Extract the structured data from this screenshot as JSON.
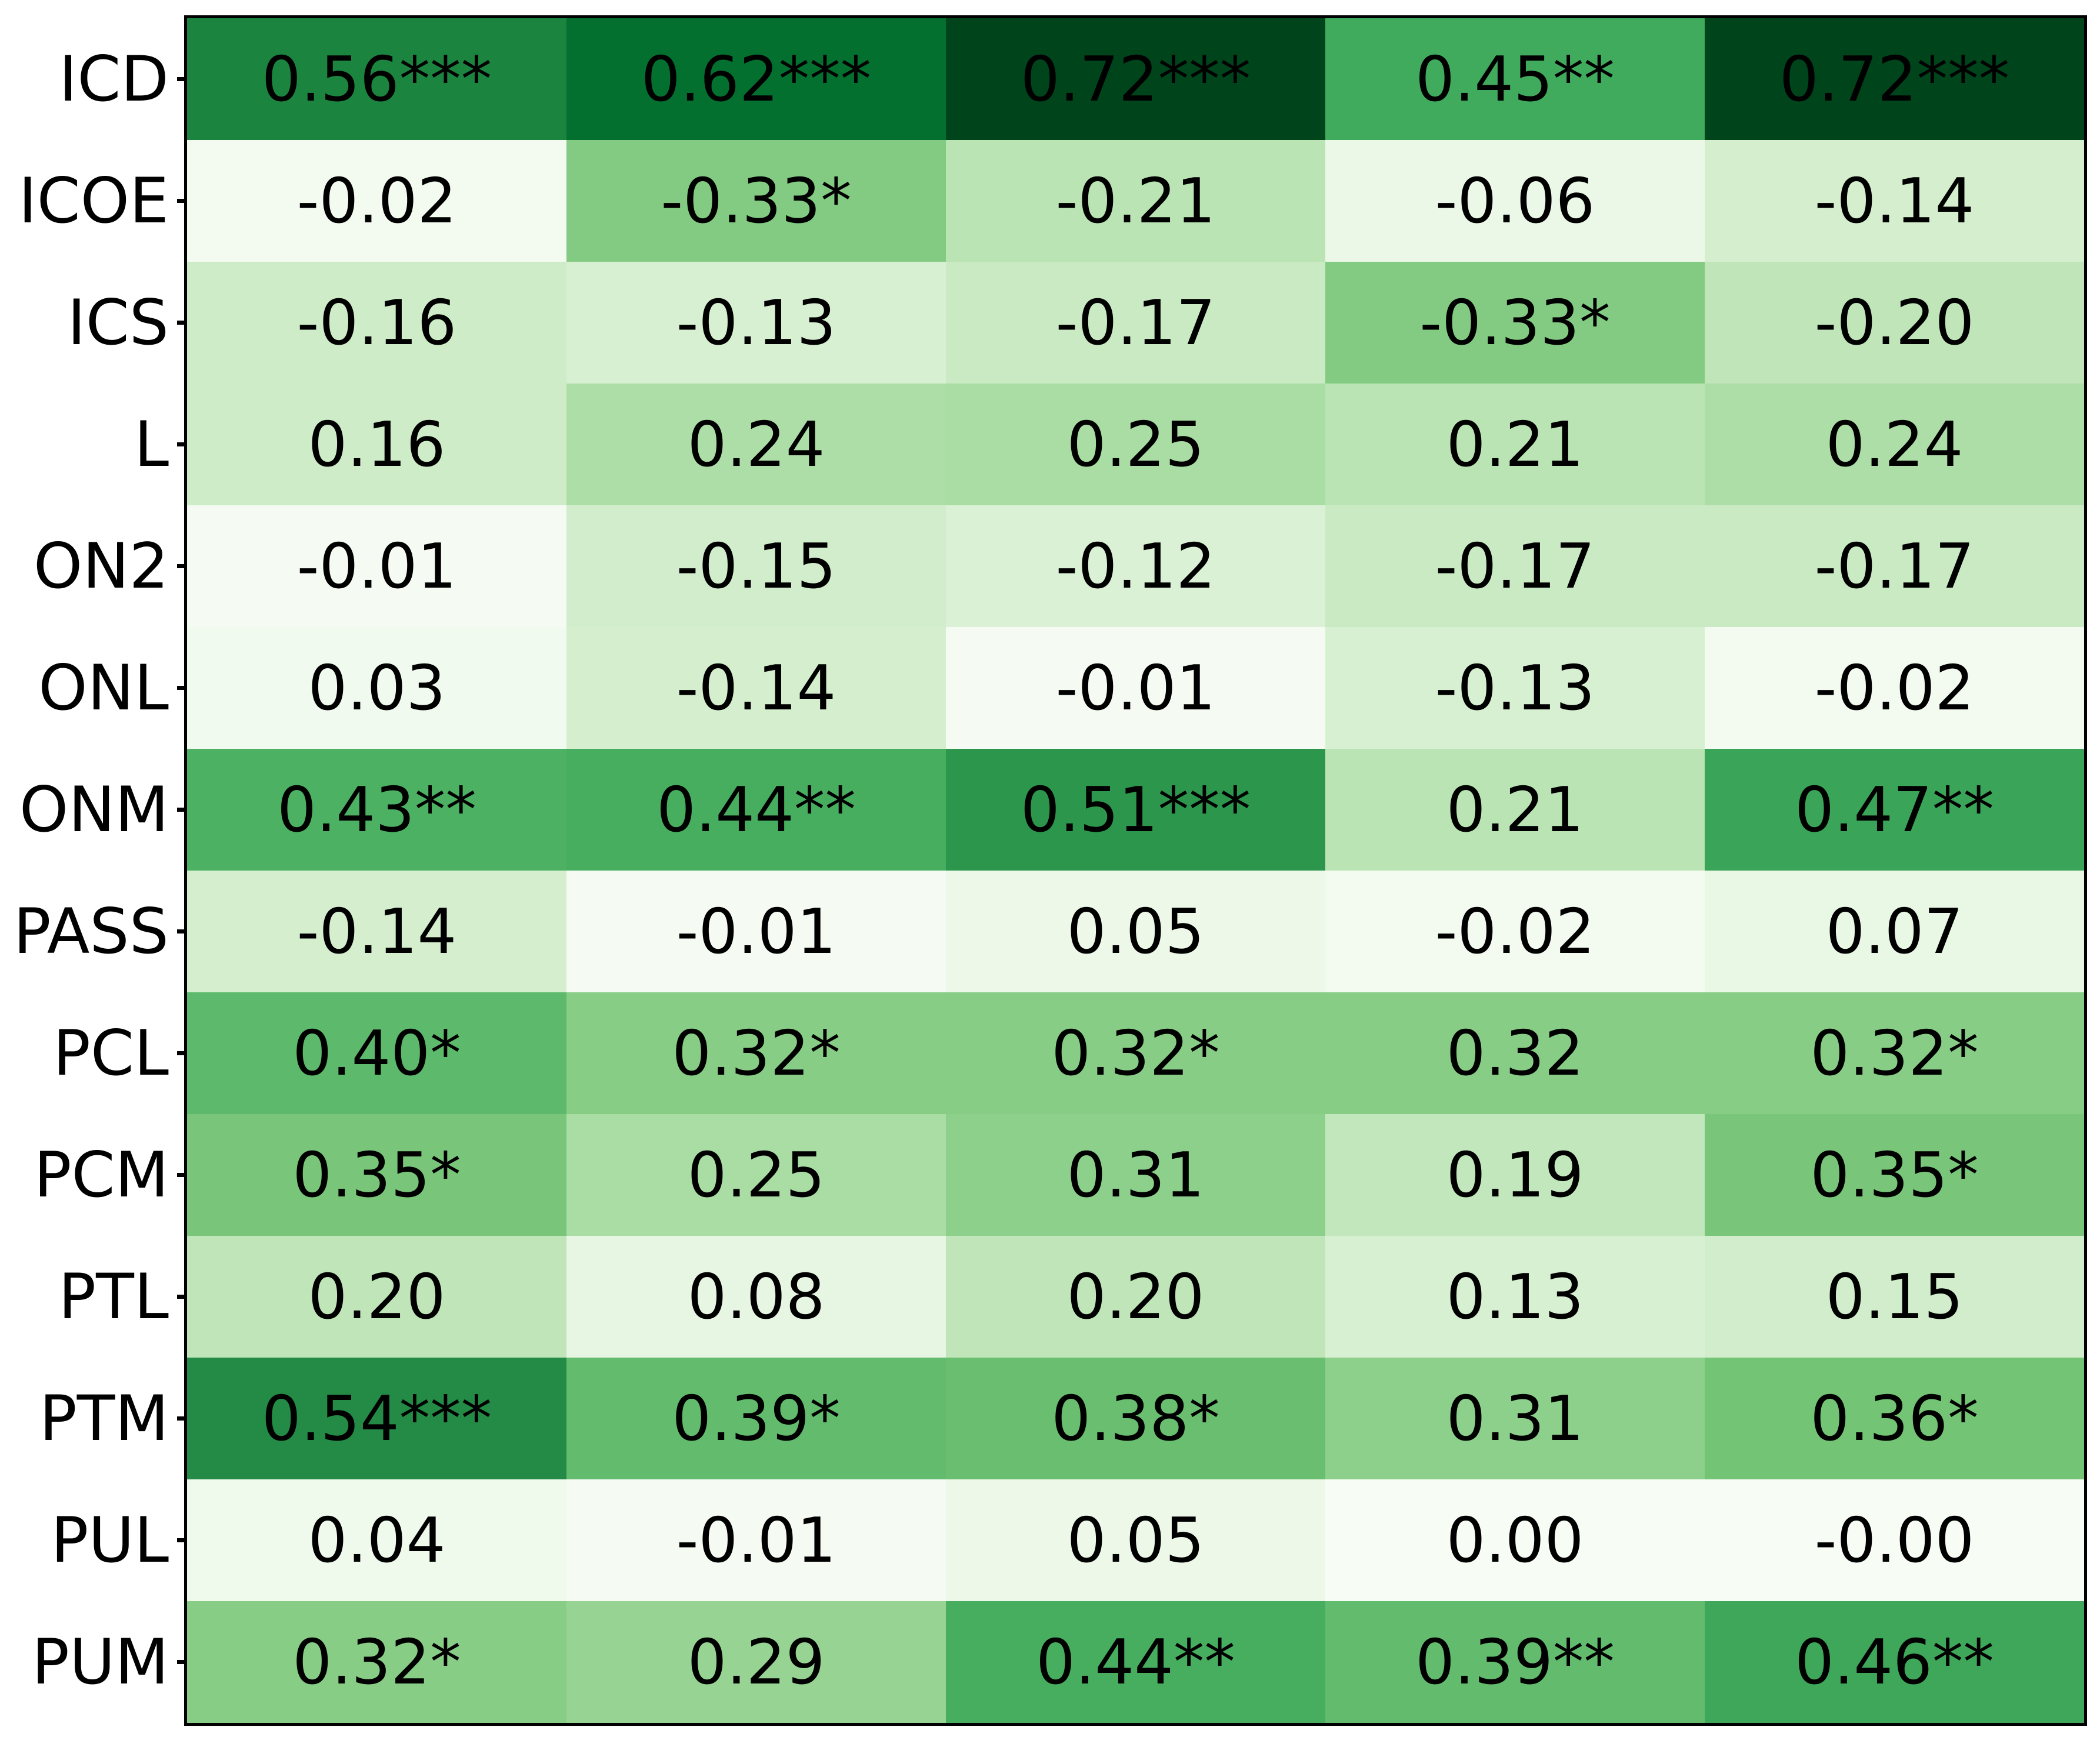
{
  "figure": {
    "background_color": "#ffffff",
    "frame_color": "#000000",
    "text_color": "#000000"
  },
  "chart_data": {
    "type": "heatmap",
    "title": "",
    "xlabel": "",
    "ylabel": "",
    "row_labels": [
      "ICD",
      "ICOE",
      "ICS",
      "L",
      "ON2",
      "ONL",
      "ONM",
      "PASS",
      "PCL",
      "PCM",
      "PTL",
      "PTM",
      "PUL",
      "PUM"
    ],
    "col_labels": [
      "",
      "",
      "",
      "",
      ""
    ],
    "cell_labels": [
      [
        "0.56***",
        "0.62***",
        "0.72***",
        "0.45**",
        "0.72***"
      ],
      [
        "-0.02",
        "-0.33*",
        "-0.21",
        "-0.06",
        "-0.14"
      ],
      [
        "-0.16",
        "-0.13",
        "-0.17",
        "-0.33*",
        "-0.20"
      ],
      [
        "0.16",
        "0.24",
        "0.25",
        "0.21",
        "0.24"
      ],
      [
        "-0.01",
        "-0.15",
        "-0.12",
        "-0.17",
        "-0.17"
      ],
      [
        "0.03",
        "-0.14",
        "-0.01",
        "-0.13",
        "-0.02"
      ],
      [
        "0.43**",
        "0.44**",
        "0.51***",
        "0.21",
        "0.47**"
      ],
      [
        "-0.14",
        "-0.01",
        "0.05",
        "-0.02",
        "0.07"
      ],
      [
        "0.40*",
        "0.32*",
        "0.32*",
        "0.32",
        "0.32*"
      ],
      [
        "0.35*",
        "0.25",
        "0.31",
        "0.19",
        "0.35*"
      ],
      [
        "0.20",
        "0.08",
        "0.20",
        "0.13",
        "0.15"
      ],
      [
        "0.54***",
        "0.39*",
        "0.38*",
        "0.31",
        "0.36*"
      ],
      [
        "0.04",
        "-0.01",
        "0.05",
        "0.00",
        "-0.00"
      ],
      [
        "0.32*",
        "0.29",
        "0.44**",
        "0.39**",
        "0.46**"
      ]
    ],
    "values": [
      [
        0.56,
        0.62,
        0.72,
        0.45,
        0.72
      ],
      [
        -0.02,
        -0.33,
        -0.21,
        -0.06,
        -0.14
      ],
      [
        -0.16,
        -0.13,
        -0.17,
        -0.33,
        -0.2
      ],
      [
        0.16,
        0.24,
        0.25,
        0.21,
        0.24
      ],
      [
        -0.01,
        -0.15,
        -0.12,
        -0.17,
        -0.17
      ],
      [
        0.03,
        -0.14,
        -0.01,
        -0.13,
        -0.02
      ],
      [
        0.43,
        0.44,
        0.51,
        0.21,
        0.47
      ],
      [
        -0.14,
        -0.01,
        0.05,
        -0.02,
        0.07
      ],
      [
        0.4,
        0.32,
        0.32,
        0.32,
        0.32
      ],
      [
        0.35,
        0.25,
        0.31,
        0.19,
        0.35
      ],
      [
        0.2,
        0.08,
        0.2,
        0.13,
        0.15
      ],
      [
        0.54,
        0.39,
        0.38,
        0.31,
        0.36
      ],
      [
        0.04,
        -0.01,
        0.05,
        0.0,
        -0.0
      ],
      [
        0.32,
        0.29,
        0.44,
        0.39,
        0.46
      ]
    ],
    "colormap": "Greens",
    "color_scale": {
      "mode": "absolute-value",
      "vmin": 0,
      "vmax": 0.72,
      "stops": [
        {
          "t": 0.0,
          "color": "#f7fcf5"
        },
        {
          "t": 0.125,
          "color": "#e5f5e0"
        },
        {
          "t": 0.25,
          "color": "#c7e9c0"
        },
        {
          "t": 0.375,
          "color": "#a1d99b"
        },
        {
          "t": 0.5,
          "color": "#74c476"
        },
        {
          "t": 0.625,
          "color": "#41ab5d"
        },
        {
          "t": 0.75,
          "color": "#238b45"
        },
        {
          "t": 0.875,
          "color": "#006d2c"
        },
        {
          "t": 1.0,
          "color": "#00441b"
        }
      ]
    },
    "grid_lines": false,
    "legend": false
  }
}
